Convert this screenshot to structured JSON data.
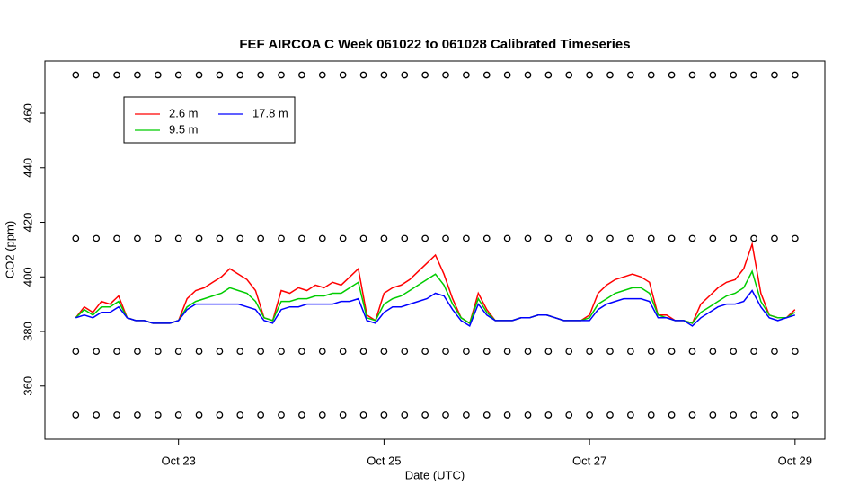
{
  "chart_data": {
    "type": "line",
    "title": "FEF AIRCOA C  Week 061022 to 061028  Calibrated Timeseries",
    "x_label": "Date (UTC)",
    "y_label": "CO2 (ppm)",
    "xlim": [
      21.7,
      29.29
    ],
    "ylim": [
      340.5,
      479.1
    ],
    "xticks": [
      {
        "value": 23,
        "label": "Oct 23"
      },
      {
        "value": 25,
        "label": "Oct 25"
      },
      {
        "value": 27,
        "label": "Oct 27"
      },
      {
        "value": 29,
        "label": "Oct 29"
      }
    ],
    "yticks": [
      360,
      380,
      400,
      420,
      440,
      460
    ],
    "legend": "topleft",
    "x": [
      22,
      22.083,
      22.167,
      22.25,
      22.333,
      22.417,
      22.5,
      22.583,
      22.667,
      22.75,
      22.833,
      22.917,
      23,
      23.083,
      23.167,
      23.25,
      23.333,
      23.417,
      23.5,
      23.583,
      23.667,
      23.75,
      23.833,
      23.917,
      24,
      24.083,
      24.167,
      24.25,
      24.333,
      24.417,
      24.5,
      24.583,
      24.667,
      24.75,
      24.833,
      24.917,
      25,
      25.083,
      25.167,
      25.25,
      25.333,
      25.417,
      25.5,
      25.583,
      25.667,
      25.75,
      25.833,
      25.917,
      26,
      26.083,
      26.167,
      26.25,
      26.333,
      26.417,
      26.5,
      26.583,
      26.667,
      26.75,
      26.833,
      26.917,
      27,
      27.083,
      27.167,
      27.25,
      27.333,
      27.417,
      27.5,
      27.583,
      27.667,
      27.75,
      27.833,
      27.917,
      28,
      28.083,
      28.167,
      28.25,
      28.333,
      28.417,
      28.5,
      28.583,
      28.667,
      28.75,
      28.833,
      28.917,
      29
    ],
    "series": [
      {
        "name": "2.6 m",
        "color": "#ff0000",
        "values": [
          385,
          389,
          387,
          391,
          390,
          393,
          385,
          384,
          384,
          383,
          383,
          383,
          384,
          392,
          395,
          396,
          398,
          400,
          403,
          401,
          399,
          395,
          385,
          384,
          395,
          394,
          396,
          395,
          397,
          396,
          398,
          397,
          400,
          403,
          386,
          384,
          394,
          396,
          397,
          399,
          402,
          405,
          408,
          401,
          392,
          385,
          383,
          394,
          388,
          384,
          384,
          384,
          385,
          385,
          386,
          386,
          385,
          384,
          384,
          384,
          386,
          394,
          397,
          399,
          400,
          401,
          400,
          398,
          386,
          386,
          384,
          384,
          383,
          390,
          393,
          396,
          398,
          399,
          403,
          412,
          394,
          386,
          385,
          385,
          388
        ]
      },
      {
        "name": "9.5 m",
        "color": "#00cc00",
        "values": [
          385,
          388,
          386,
          389,
          389,
          391,
          385,
          384,
          384,
          383,
          383,
          383,
          384,
          389,
          391,
          392,
          393,
          394,
          396,
          395,
          394,
          391,
          385,
          384,
          391,
          391,
          392,
          392,
          393,
          393,
          394,
          394,
          396,
          398,
          385,
          384,
          390,
          392,
          393,
          395,
          397,
          399,
          401,
          397,
          390,
          385,
          383,
          392,
          387,
          384,
          384,
          384,
          385,
          385,
          386,
          386,
          385,
          384,
          384,
          384,
          385,
          390,
          392,
          394,
          395,
          396,
          396,
          394,
          386,
          385,
          384,
          384,
          383,
          387,
          389,
          391,
          393,
          394,
          396,
          402,
          391,
          386,
          385,
          385,
          387
        ]
      },
      {
        "name": "17.8 m",
        "color": "#0000ff",
        "values": [
          385,
          386,
          385,
          387,
          387,
          389,
          385,
          384,
          384,
          383,
          383,
          383,
          384,
          388,
          390,
          390,
          390,
          390,
          390,
          390,
          389,
          388,
          384,
          383,
          388,
          389,
          389,
          390,
          390,
          390,
          390,
          391,
          391,
          392,
          384,
          383,
          387,
          389,
          389,
          390,
          391,
          392,
          394,
          393,
          388,
          384,
          382,
          390,
          386,
          384,
          384,
          384,
          385,
          385,
          386,
          386,
          385,
          384,
          384,
          384,
          384,
          388,
          390,
          391,
          392,
          392,
          392,
          391,
          385,
          385,
          384,
          384,
          382,
          385,
          387,
          389,
          390,
          390,
          391,
          395,
          389,
          385,
          384,
          385,
          386
        ]
      }
    ],
    "reference_levels": [
      474,
      414.1,
      372.7,
      349.4
    ],
    "reference_x": [
      22,
      22.2,
      22.4,
      22.6,
      22.8,
      23,
      23.2,
      23.4,
      23.6,
      23.8,
      24,
      24.2,
      24.4,
      24.6,
      24.8,
      25,
      25.2,
      25.4,
      25.6,
      25.8,
      26,
      26.2,
      26.4,
      26.6,
      26.8,
      27,
      27.2,
      27.4,
      27.6,
      27.8,
      28,
      28.2,
      28.4,
      28.6,
      28.8,
      29
    ]
  }
}
